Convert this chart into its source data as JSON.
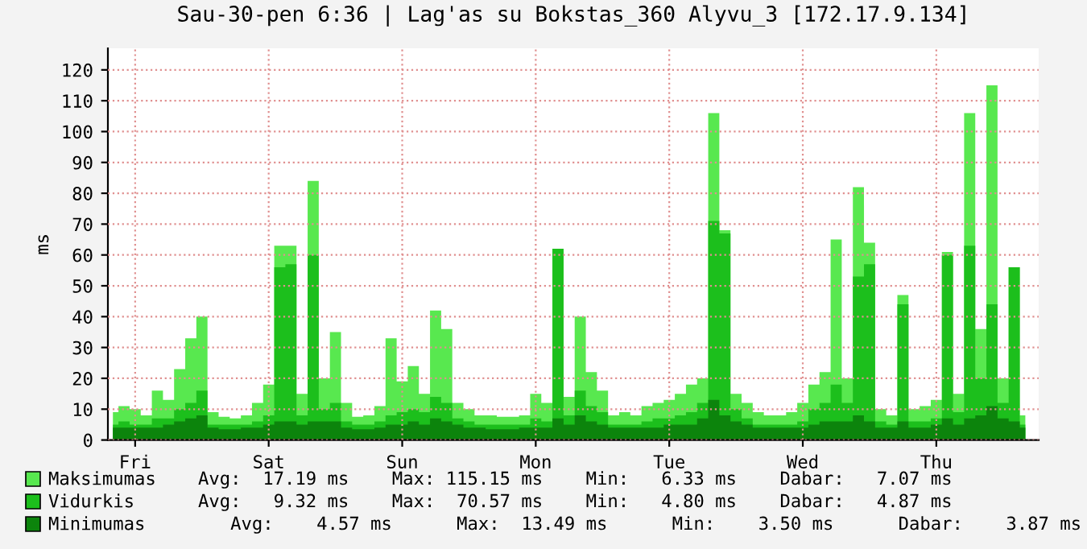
{
  "chart_data": {
    "type": "area",
    "title": "Sau-30-pen 6:36 | Lag'as su Bokstas_360 Alyvu_3 [172.17.9.134]",
    "ylabel": "ms",
    "categories": [
      null,
      null,
      "Fri",
      null,
      null,
      null,
      null,
      null,
      null,
      null,
      null,
      null,
      null,
      null,
      "Sat",
      null,
      null,
      null,
      null,
      null,
      null,
      null,
      null,
      null,
      null,
      null,
      "Sun",
      null,
      null,
      null,
      null,
      null,
      null,
      null,
      null,
      null,
      null,
      null,
      "Mon",
      null,
      null,
      null,
      null,
      null,
      null,
      null,
      null,
      null,
      null,
      null,
      "Tue",
      null,
      null,
      null,
      null,
      null,
      null,
      null,
      null,
      null,
      null,
      null,
      "Wed",
      null,
      null,
      null,
      null,
      null,
      null,
      null,
      null,
      null,
      null,
      null,
      "Thu",
      null,
      null,
      null,
      null,
      null,
      null,
      null,
      null
    ],
    "series": [
      {
        "name": "Maksimumas",
        "color": "#58e84f",
        "values": [
          9,
          11,
          10,
          8,
          16,
          13,
          23,
          33,
          40,
          9,
          7.5,
          7,
          8,
          12,
          18,
          63,
          63,
          15,
          84,
          20,
          35,
          12,
          7.5,
          8,
          11,
          33,
          19,
          24,
          15,
          42,
          36,
          12,
          10,
          8,
          8,
          7.5,
          7.5,
          8,
          15,
          12,
          62,
          14,
          40,
          22,
          16,
          8,
          9,
          8,
          11,
          12,
          13,
          15,
          18,
          20,
          106,
          68,
          15,
          12,
          9,
          8,
          8,
          9,
          12,
          18,
          22,
          65,
          20,
          82,
          64,
          10,
          8,
          47,
          10,
          11,
          13,
          61,
          15,
          106,
          36,
          115,
          20,
          56,
          8
        ]
      },
      {
        "name": "Vidurkis",
        "color": "#1cbf1c",
        "values": [
          5,
          6,
          5,
          5,
          7,
          7,
          10,
          12,
          16,
          5,
          5,
          5,
          5,
          6,
          8,
          56,
          57,
          8,
          60,
          10,
          12,
          6,
          5,
          5,
          6,
          8,
          9,
          10,
          9,
          14,
          12,
          7,
          6,
          5,
          5,
          5,
          5,
          5,
          7,
          6,
          62,
          8,
          16,
          11,
          9,
          5,
          5,
          5,
          6,
          7,
          7,
          8,
          9,
          12,
          71,
          67,
          10,
          7,
          5,
          5,
          5,
          5,
          6,
          10,
          12,
          18,
          12,
          53,
          57,
          6,
          5,
          44,
          6,
          6,
          7,
          60,
          9,
          63,
          20,
          44,
          12,
          56,
          5
        ]
      },
      {
        "name": "Minimumas",
        "color": "#0c840c",
        "values": [
          4,
          4,
          4,
          4,
          4,
          5,
          6,
          7,
          8,
          4,
          3.5,
          3.5,
          4,
          4,
          5,
          6,
          6,
          5,
          6,
          6,
          6,
          4,
          3.5,
          3.5,
          4,
          5,
          5,
          6,
          5,
          7,
          6,
          5,
          4,
          4,
          3.5,
          3.5,
          3.5,
          4,
          4,
          4,
          7,
          5,
          8,
          6,
          5,
          4,
          4,
          4,
          4,
          4,
          5,
          5,
          5,
          7,
          13,
          8,
          6,
          5,
          4,
          4,
          4,
          4,
          4,
          5,
          6,
          6,
          6,
          8,
          6,
          4,
          4,
          6,
          4,
          4,
          5,
          7,
          5,
          7,
          8,
          11,
          7,
          6,
          4
        ]
      }
    ],
    "ylim": [
      0,
      127
    ],
    "yticks": [
      0,
      10,
      20,
      30,
      40,
      50,
      60,
      70,
      80,
      90,
      100,
      110,
      120
    ],
    "grid": true,
    "legend": "bottom",
    "annotations": [
      "Avg:  17.19 ms    Max: 115.15 ms    Min:   6.33 ms    Dabar:   7.07 ms",
      "Avg:   9.32 ms    Max:  70.57 ms    Min:   4.80 ms    Dabar:   4.87 ms",
      "   Avg:    4.57 ms      Max:  13.49 ms      Min:    3.50 ms      Dabar:    3.87 ms"
    ]
  }
}
